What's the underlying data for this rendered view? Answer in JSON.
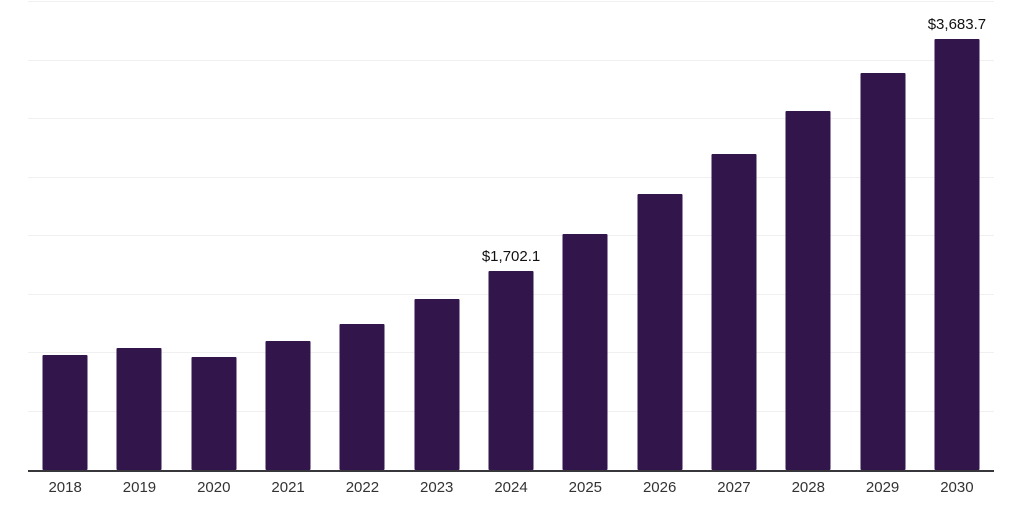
{
  "chart_data": {
    "type": "bar",
    "title": "",
    "xlabel": "",
    "ylabel": "",
    "ylim": [
      0,
      4000
    ],
    "grid_step": 500,
    "grid": true,
    "legend": false,
    "bar_color": "#32154b",
    "axis_color": "#37363b",
    "gridline_color": "#f0f0f0",
    "label_color": "#111111",
    "tick_color": "#333333",
    "categories": [
      "2018",
      "2019",
      "2020",
      "2021",
      "2022",
      "2023",
      "2024",
      "2025",
      "2026",
      "2027",
      "2028",
      "2029",
      "2030"
    ],
    "values": [
      985,
      1045,
      965,
      1105,
      1250,
      1465,
      1702.1,
      2020,
      2360,
      2705,
      3065,
      3395,
      3683.7
    ],
    "data_labels": [
      null,
      null,
      null,
      null,
      null,
      null,
      "$1,702.1",
      null,
      null,
      null,
      null,
      null,
      "$3,683.7"
    ]
  }
}
